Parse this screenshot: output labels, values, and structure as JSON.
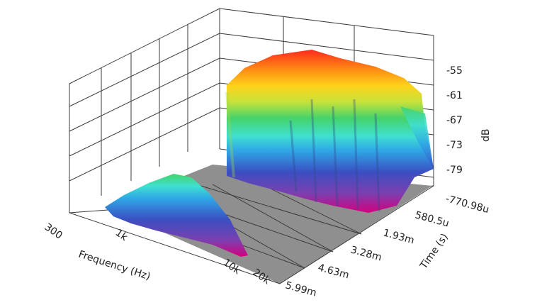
{
  "chart_data": {
    "type": "3d-waterfall-spectrum",
    "x_axis": {
      "label": "Frequency (Hz)",
      "scale": "log",
      "range": [
        300,
        20000
      ],
      "ticks": [
        "300",
        "1k",
        "10k",
        "20k"
      ]
    },
    "y_axis": {
      "label": "Time (s)",
      "ticks": [
        "-770.98u",
        "580.5u",
        "1.93m",
        "3.28m",
        "4.63m",
        "5.99m"
      ]
    },
    "z_axis": {
      "label": "dB",
      "range": [
        -82,
        -53
      ],
      "ticks": [
        "-55",
        "-61",
        "-67",
        "-73",
        "-79"
      ]
    },
    "color_scale": [
      "#d4007e",
      "#7b3fb0",
      "#3a4fc2",
      "#2fa6e6",
      "#3fe0d0",
      "#44d36a",
      "#c8e23a",
      "#ffd21a",
      "#ff8a14",
      "#ff2a1e"
    ],
    "floor_color": "#8f8f8f",
    "series": [
      {
        "frequency_range": [
          300,
          3500
        ],
        "level_profile": [
          {
            "frequency": 300,
            "level": -70
          },
          {
            "frequency": 600,
            "level": -67
          },
          {
            "frequency": 1000,
            "level": -63
          },
          {
            "frequency": 2000,
            "level": -68
          },
          {
            "frequency": 3500,
            "level": -80
          }
        ]
      },
      {
        "frequency_range": [
          900,
          20000
        ],
        "level_profile": [
          {
            "frequency": 900,
            "level": -62
          },
          {
            "frequency": 2000,
            "level": -55
          },
          {
            "frequency": 5000,
            "level": -54
          },
          {
            "frequency": 10000,
            "level": -56
          },
          {
            "frequency": 15000,
            "level": -70
          },
          {
            "frequency": 20000,
            "level": -79
          }
        ]
      }
    ]
  }
}
